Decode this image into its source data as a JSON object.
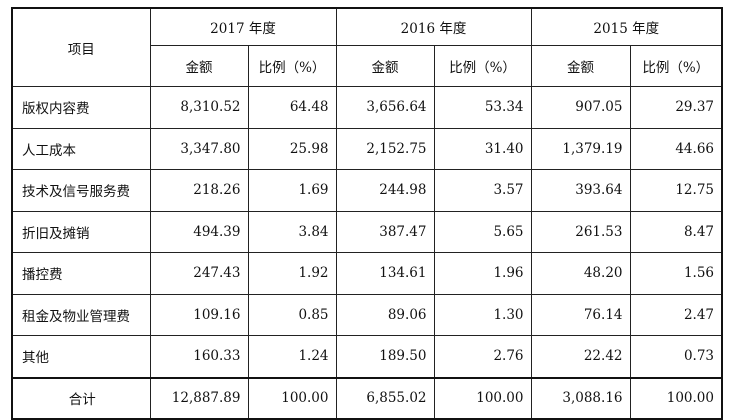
{
  "header": {
    "item_label": "项目",
    "years": [
      "2017 年度",
      "2016 年度",
      "2015 年度"
    ],
    "amount_label": "金额",
    "ratio_label": "比例（%）"
  },
  "rows": [
    {
      "label": "版权内容费",
      "values": [
        "8,310.52",
        "64.48",
        "3,656.64",
        "53.34",
        "907.05",
        "29.37"
      ]
    },
    {
      "label": "人工成本",
      "values": [
        "3,347.80",
        "25.98",
        "2,152.75",
        "31.40",
        "1,379.19",
        "44.66"
      ]
    },
    {
      "label": "技术及信号服务费",
      "values": [
        "218.26",
        "1.69",
        "244.98",
        "3.57",
        "393.64",
        "12.75"
      ]
    },
    {
      "label": "折旧及摊销",
      "values": [
        "494.39",
        "3.84",
        "387.47",
        "5.65",
        "261.53",
        "8.47"
      ]
    },
    {
      "label": "播控费",
      "values": [
        "247.43",
        "1.92",
        "134.61",
        "1.96",
        "48.20",
        "1.56"
      ]
    },
    {
      "label": "租金及物业管理费",
      "values": [
        "109.16",
        "0.85",
        "89.06",
        "1.30",
        "76.14",
        "2.47"
      ]
    },
    {
      "label": "其他",
      "values": [
        "160.33",
        "1.24",
        "189.50",
        "2.76",
        "22.42",
        "0.73"
      ]
    }
  ],
  "total": {
    "label": "合计",
    "values": [
      "12,887.89",
      "100.00",
      "6,855.02",
      "100.00",
      "3,088.16",
      "100.00"
    ]
  }
}
